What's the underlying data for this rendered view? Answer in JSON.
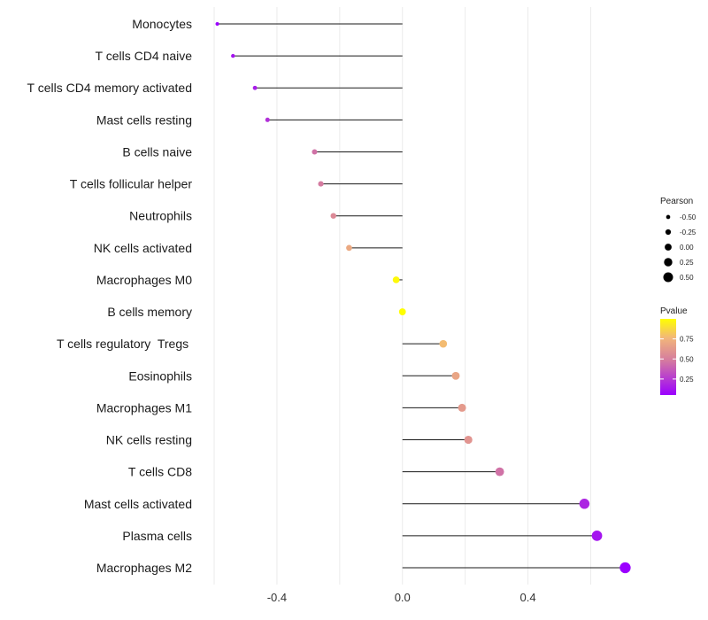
{
  "chart_data": {
    "type": "lollipop",
    "title": "",
    "xlabel": "",
    "ylabel": "",
    "xlim": [
      -0.6,
      0.72
    ],
    "x_ticks": [
      -0.4,
      0.0,
      0.4
    ],
    "x_tick_labels": [
      "-0.4",
      "0.0",
      "0.4"
    ],
    "grid": true,
    "categories": [
      "Monocytes",
      "T cells CD4 naive",
      "T cells CD4 memory activated",
      "Mast cells resting",
      "B cells naive",
      "T cells follicular helper",
      "Neutrophils",
      "NK cells activated",
      "Macrophages M0",
      "B cells memory",
      "T cells regulatory  Tregs ",
      "Eosinophils",
      "Macrophages M1",
      "NK cells resting",
      "T cells CD8",
      "Mast cells activated",
      "Plasma cells",
      "Macrophages M2"
    ],
    "pearson": [
      -0.59,
      -0.54,
      -0.47,
      -0.43,
      -0.28,
      -0.26,
      -0.22,
      -0.17,
      -0.02,
      0.0,
      0.13,
      0.17,
      0.19,
      0.21,
      0.31,
      0.58,
      0.62,
      0.71
    ],
    "pvalue": [
      0.05,
      0.12,
      0.15,
      0.22,
      0.45,
      0.48,
      0.55,
      0.7,
      0.98,
      1.0,
      0.78,
      0.68,
      0.63,
      0.6,
      0.45,
      0.18,
      0.12,
      0.05
    ],
    "legend_size": {
      "title": "Pearson",
      "values": [
        -0.5,
        -0.25,
        0.0,
        0.25,
        0.5
      ],
      "labels": [
        "-0.50",
        "-0.25",
        "0.00",
        "0.25",
        "0.50"
      ]
    },
    "legend_color": {
      "title": "Pvalue",
      "range": [
        0.05,
        1.0
      ],
      "ticks": [
        0.25,
        0.5,
        0.75
      ],
      "tick_labels": [
        "0.25",
        "0.50",
        "0.75"
      ],
      "colors": [
        "#9b00ff",
        "#d47aa0",
        "#f2b67a",
        "#ffff00"
      ]
    }
  }
}
